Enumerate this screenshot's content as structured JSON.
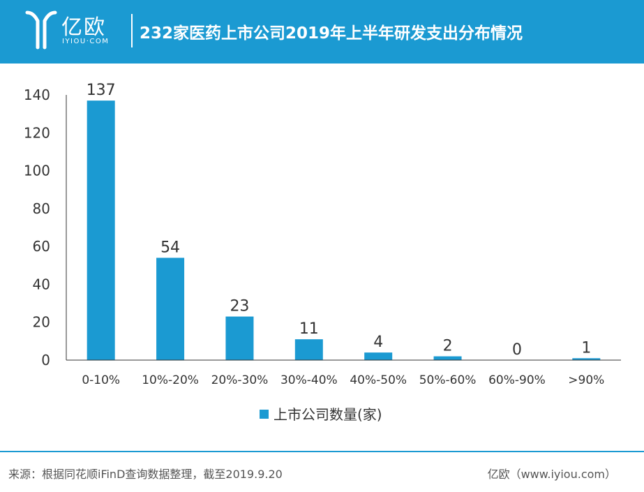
{
  "header": {
    "logo_text": "亿欧",
    "logo_sub": "IYIOU·COM",
    "title": "232家医药上市公司2019年上半年研发支出分布情况"
  },
  "colors": {
    "accent": "#1b9ad2",
    "bar": "#1b9ad2"
  },
  "chart_data": {
    "type": "bar",
    "title": "232家医药上市公司2019年上半年研发支出分布情况",
    "categories": [
      "0-10%",
      "10%-20%",
      "20%-30%",
      "30%-40%",
      "40%-50%",
      "50%-60%",
      "60%-90%",
      ">90%"
    ],
    "series": [
      {
        "name": "上市公司数量(家)",
        "values": [
          137,
          54,
          23,
          11,
          4,
          2,
          0,
          1
        ]
      }
    ],
    "ylim": [
      0,
      140
    ],
    "yticks": [
      0,
      20,
      40,
      60,
      80,
      100,
      120,
      140
    ],
    "grid": false,
    "legend": "bottom",
    "data_labels": true
  },
  "footer": {
    "source": "来源：根据同花顺iFinD查询数据整理，截至2019.9.20",
    "credit": "亿欧（www.iyiou.com）"
  }
}
